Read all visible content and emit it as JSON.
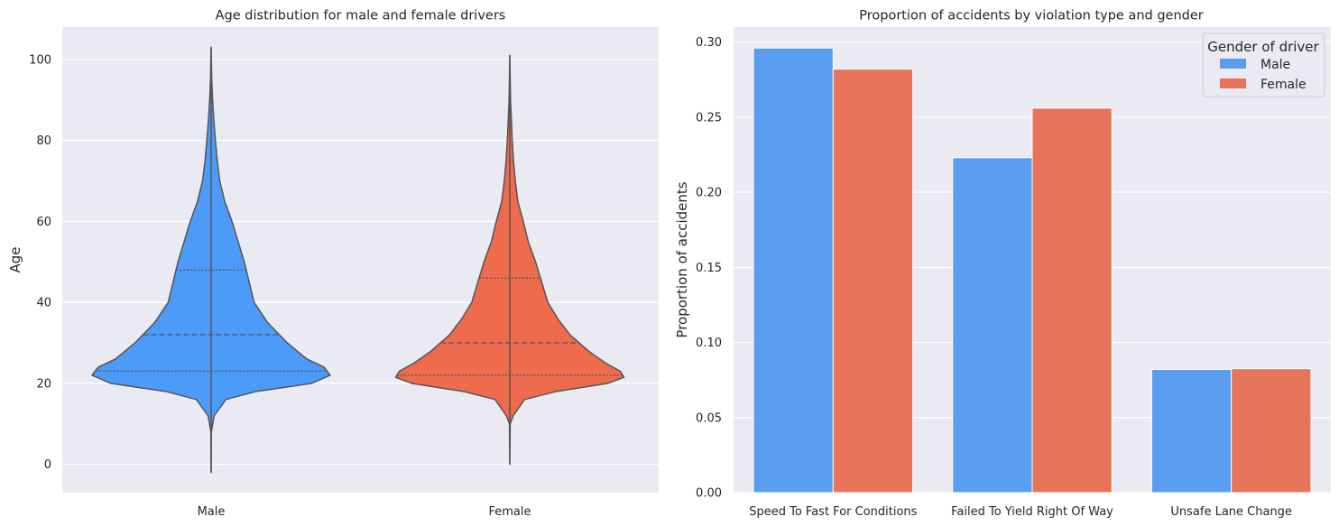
{
  "colors": {
    "male": "#4c9bf8",
    "female": "#ee6b4e",
    "male_bar": "#589df0",
    "female_bar": "#e6745a",
    "outline": "#555555"
  },
  "chart_data": [
    {
      "type": "violin",
      "title": "Age distribution for male and female drivers",
      "xlabel": "",
      "ylabel": "Age",
      "ylim": [
        -7,
        108
      ],
      "yticks": [
        0,
        20,
        40,
        60,
        80,
        100
      ],
      "ytick_labels": [
        "0",
        "20",
        "40",
        "60",
        "80",
        "100"
      ],
      "grid": true,
      "categories": [
        "Male",
        "Female"
      ],
      "series": [
        {
          "category": "Male",
          "min": -2,
          "max": 103,
          "quartiles": [
            23,
            32,
            48
          ],
          "profile": [
            [
              -2,
              0
            ],
            [
              8,
              0.2
            ],
            [
              12,
              2.5
            ],
            [
              16,
              12
            ],
            [
              18,
              37
            ],
            [
              20,
              82
            ],
            [
              22,
              97
            ],
            [
              24,
              92
            ],
            [
              26,
              78
            ],
            [
              30,
              62
            ],
            [
              35,
              46
            ],
            [
              40,
              35
            ],
            [
              45,
              31
            ],
            [
              50,
              27
            ],
            [
              55,
              22
            ],
            [
              60,
              17
            ],
            [
              65,
              11
            ],
            [
              70,
              7
            ],
            [
              75,
              5
            ],
            [
              80,
              3.5
            ],
            [
              85,
              2.2
            ],
            [
              90,
              1.2
            ],
            [
              95,
              0.5
            ],
            [
              103,
              0
            ]
          ]
        },
        {
          "category": "Female",
          "min": 0,
          "max": 101,
          "quartiles": [
            22,
            30,
            46
          ],
          "profile": [
            [
              0,
              0
            ],
            [
              10,
              0.3
            ],
            [
              12,
              2.8
            ],
            [
              16,
              12
            ],
            [
              18,
              38
            ],
            [
              20,
              80
            ],
            [
              21.5,
              93
            ],
            [
              23,
              90
            ],
            [
              25,
              78
            ],
            [
              28,
              64
            ],
            [
              32,
              49
            ],
            [
              36,
              39
            ],
            [
              40,
              31
            ],
            [
              45,
              26
            ],
            [
              50,
              21
            ],
            [
              55,
              15
            ],
            [
              60,
              11
            ],
            [
              65,
              6.5
            ],
            [
              70,
              4.5
            ],
            [
              75,
              3
            ],
            [
              80,
              2
            ],
            [
              85,
              1.3
            ],
            [
              90,
              0.6
            ],
            [
              101,
              0
            ]
          ]
        }
      ]
    },
    {
      "type": "bar",
      "title": "Proportion of accidents by violation type and gender",
      "xlabel": "",
      "ylabel": "Proportion of accidents",
      "ylim": [
        0,
        0.31
      ],
      "yticks": [
        0.0,
        0.05,
        0.1,
        0.15,
        0.2,
        0.25,
        0.3
      ],
      "ytick_labels": [
        "0.00",
        "0.05",
        "0.10",
        "0.15",
        "0.20",
        "0.25",
        "0.30"
      ],
      "grid": true,
      "categories": [
        "Speed To Fast For Conditions",
        "Failed To Yield Right Of Way",
        "Unsafe Lane Change"
      ],
      "series": [
        {
          "name": "Male",
          "values": [
            0.296,
            0.223,
            0.082
          ]
        },
        {
          "name": "Female",
          "values": [
            0.282,
            0.256,
            0.0825
          ]
        }
      ],
      "legend": {
        "title": "Gender of driver",
        "placement": "top-right"
      }
    }
  ]
}
